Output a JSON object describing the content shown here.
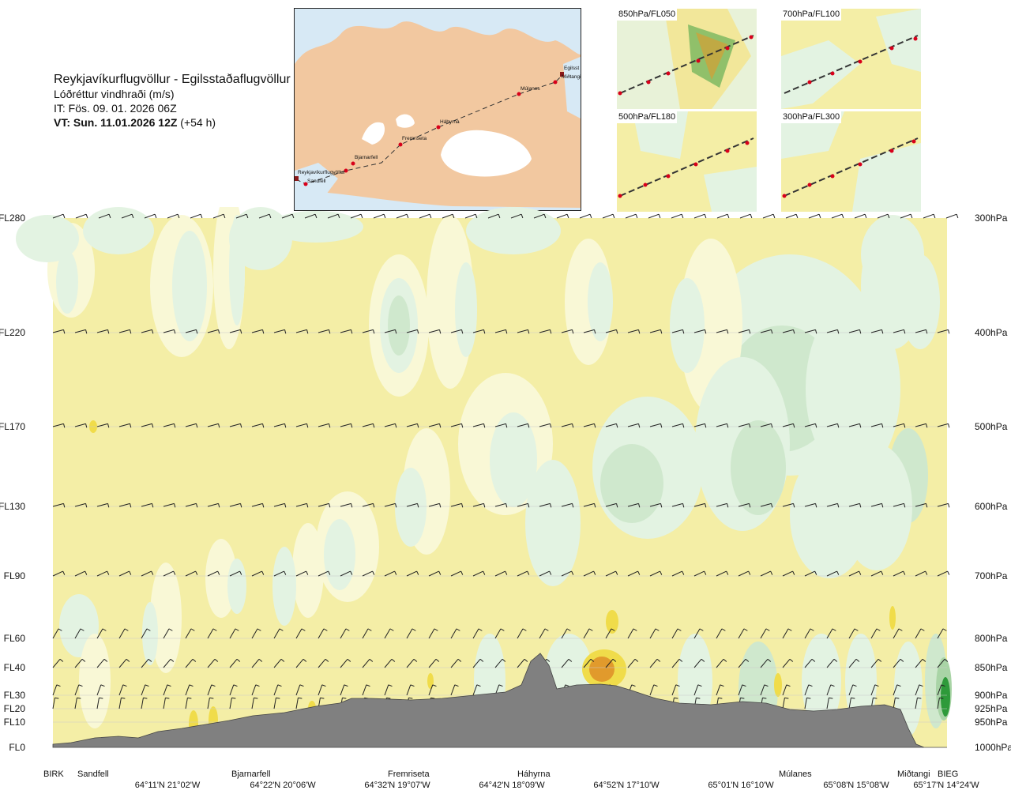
{
  "header": {
    "route": "Reykjavíkurflugvöllur - Egilsstaðaflugvöllur",
    "variable": "Lóðréttur vindhraði (m/s)",
    "it": "IT: Fös. 09. 01. 2026 06Z",
    "vt_bold": "VT: Sun. 11.01.2026 12Z",
    "vt_offset": " (+54 h)"
  },
  "overview_map": {
    "waypoints": [
      "Reykjavíkurflugvöllur",
      "Sandfell",
      "Bjarnarfell",
      "Fremriseta",
      "Háhyrna",
      "Múlanes",
      "Miðtangi",
      "Egilsst"
    ],
    "colors": {
      "sea": "#d7e9f5",
      "land": "#f2c8a0",
      "ice": "#ffffff",
      "route": "#333333",
      "point": "#d8001a"
    }
  },
  "mini_maps": [
    {
      "label": "850hPa/FL050"
    },
    {
      "label": "700hPa/FL100"
    },
    {
      "label": "500hPa/FL180"
    },
    {
      "label": "300hPa/FL300"
    }
  ],
  "chart_data": {
    "type": "cross-section",
    "title": "Reykjavíkurflugvöllur - Egilsstaðaflugvöllur",
    "variable": "Lóðréttur vindhraði (m/s)",
    "y_axis_left": [
      "FL280",
      "FL220",
      "FL170",
      "FL130",
      "FL90",
      "FL60",
      "FL40",
      "FL30",
      "FL20",
      "FL10",
      "FL0"
    ],
    "y_axis_right": [
      "300hPa",
      "400hPa",
      "500hPa",
      "600hPa",
      "700hPa",
      "800hPa",
      "850hPa",
      "900hPa",
      "925hPa",
      "950hPa",
      "1000hPa"
    ],
    "pressure_levels_hpa": [
      300,
      400,
      500,
      600,
      700,
      800,
      850,
      900,
      925,
      950,
      1000
    ],
    "stations": [
      "BIRK",
      "Sandfell",
      "Bjarnarfell",
      "Fremriseta",
      "Háhyrna",
      "Múlanes",
      "Miðtangi",
      "BIEG"
    ],
    "coordinates": [
      "64°11'N 21°02'W",
      "64°22'N 20°06'W",
      "64°32'N 19°07'W",
      "64°42'N 18°09'W",
      "64°52'N 17°10'W",
      "65°01'N 16°10'W",
      "65°08'N 15°08'W",
      "65°17'N 14°24'W"
    ],
    "colors": {
      "background": "#f4eea6",
      "weak": "#f9f8d6",
      "green1": "#e3f3e2",
      "green2": "#cfe8cd",
      "green3": "#a9d4a6",
      "green4": "#2e9a3a",
      "yellow2": "#f0dc4a",
      "orange": "#e19a2c",
      "terrain": "#808080"
    }
  }
}
